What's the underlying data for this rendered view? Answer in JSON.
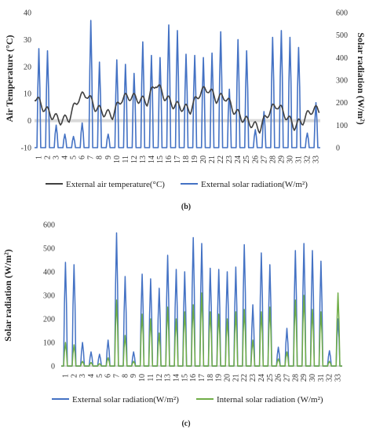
{
  "chart_data": [
    {
      "type": "line",
      "panel_label": "(b)",
      "ylabel": "Air Temperature (°C)",
      "y2label": "Solar radiation (W/m²)",
      "ylim": [
        -10,
        40
      ],
      "yticks": [
        "40",
        "30",
        "20",
        "10",
        "0",
        "-10"
      ],
      "y2lim": [
        0,
        600
      ],
      "y2ticks": [
        "600",
        "500",
        "400",
        "300",
        "200",
        "100",
        "0"
      ],
      "categories": [
        "1",
        "2",
        "3",
        "4",
        "5",
        "6",
        "7",
        "8",
        "9",
        "10",
        "11",
        "12",
        "13",
        "14",
        "15",
        "16",
        "17",
        "18",
        "19",
        "20",
        "21",
        "22",
        "23",
        "24",
        "25",
        "26",
        "27",
        "28",
        "29",
        "30",
        "31",
        "32",
        "33"
      ],
      "series": [
        {
          "name": "External air temperature(°C)",
          "color": "#404040",
          "axis": "left",
          "values": [
            9,
            5,
            2,
            0,
            1,
            8,
            10,
            5,
            3,
            2,
            8,
            9,
            8,
            7,
            14,
            9,
            6,
            5,
            4,
            10,
            12,
            8,
            9,
            4,
            1,
            -1,
            -3,
            3,
            6,
            2,
            -2,
            0,
            4
          ]
        },
        {
          "name": "External solar radiation(W/m²)",
          "color": "#4472C4",
          "axis": "right",
          "peaks": [
            440,
            430,
            100,
            60,
            50,
            110,
            565,
            380,
            60,
            390,
            370,
            330,
            470,
            410,
            400,
            545,
            520,
            415,
            410,
            400,
            420,
            515,
            260,
            480,
            430,
            80,
            160,
            490,
            520,
            490,
            445,
            65,
            200
          ]
        }
      ],
      "grid": false,
      "legend": "bottom"
    },
    {
      "type": "line",
      "panel_label": "(c)",
      "ylabel": "Solar radiation (W/m²)",
      "ylim": [
        0,
        600
      ],
      "yticks": [
        "600",
        "500",
        "400",
        "300",
        "200",
        "100",
        "0"
      ],
      "categories": [
        "1",
        "2",
        "3",
        "4",
        "5",
        "6",
        "7",
        "8",
        "9",
        "10",
        "11",
        "12",
        "13",
        "14",
        "15",
        "16",
        "17",
        "18",
        "19",
        "20",
        "21",
        "22",
        "23",
        "24",
        "25",
        "26",
        "27",
        "28",
        "29",
        "30",
        "31",
        "32",
        "33"
      ],
      "series": [
        {
          "name": "External solar radiation(W/m²)",
          "color": "#4472C4",
          "peaks": [
            440,
            430,
            100,
            60,
            50,
            110,
            565,
            380,
            60,
            390,
            370,
            330,
            470,
            410,
            400,
            545,
            520,
            415,
            410,
            400,
            420,
            515,
            260,
            480,
            430,
            80,
            160,
            490,
            520,
            490,
            445,
            65,
            200
          ]
        },
        {
          "name": "Internal solar radiation (W/m²)",
          "color": "#70AD47",
          "peaks": [
            100,
            90,
            20,
            15,
            10,
            35,
            280,
            130,
            20,
            220,
            200,
            140,
            250,
            200,
            230,
            260,
            310,
            230,
            220,
            200,
            230,
            240,
            110,
            230,
            250,
            30,
            60,
            280,
            300,
            240,
            230,
            20,
            310
          ]
        }
      ],
      "grid": false,
      "legend": "bottom"
    }
  ]
}
